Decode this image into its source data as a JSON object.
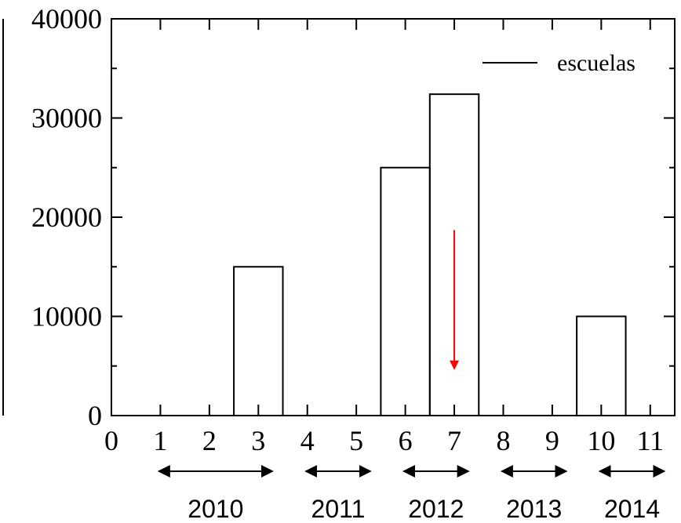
{
  "chart_data": {
    "type": "histogram",
    "title": "",
    "xlabel": "",
    "ylabel": "",
    "xlim": [
      0,
      11.5
    ],
    "ylim": [
      0,
      40000
    ],
    "x_ticks": [
      0,
      1,
      2,
      3,
      4,
      5,
      6,
      7,
      8,
      9,
      10,
      11
    ],
    "x_tick_labels": [
      "0",
      "1",
      "2",
      "3",
      "4",
      "5",
      "6",
      "7",
      "8",
      "9",
      "10",
      "11"
    ],
    "y_ticks": [
      0,
      10000,
      20000,
      30000,
      40000
    ],
    "y_tick_labels": [
      "0",
      "10000",
      "20000",
      "30000",
      "40000"
    ],
    "grid": false,
    "legend": {
      "position": "top-right",
      "entries": [
        "escuelas"
      ]
    },
    "series": [
      {
        "name": "escuelas",
        "x": [
          0,
          1,
          2,
          3,
          4,
          5,
          6,
          7,
          8,
          9,
          10,
          11
        ],
        "values": [
          0,
          0,
          0,
          15000,
          0,
          0,
          25000,
          32400,
          0,
          0,
          10000,
          0
        ]
      }
    ],
    "annotations": {
      "red_arrow": {
        "x": 7,
        "y_from": 18700,
        "y_to": 4700,
        "color": "#ff0000"
      },
      "year_ranges": [
        {
          "label": "2010",
          "from": 1,
          "to": 3
        },
        {
          "label": "2011",
          "from": 4,
          "to": 5
        },
        {
          "label": "2012",
          "from": 6,
          "to": 7
        },
        {
          "label": "2013",
          "from": 8,
          "to": 9
        },
        {
          "label": "2014",
          "from": 10,
          "to": 11
        }
      ]
    }
  }
}
